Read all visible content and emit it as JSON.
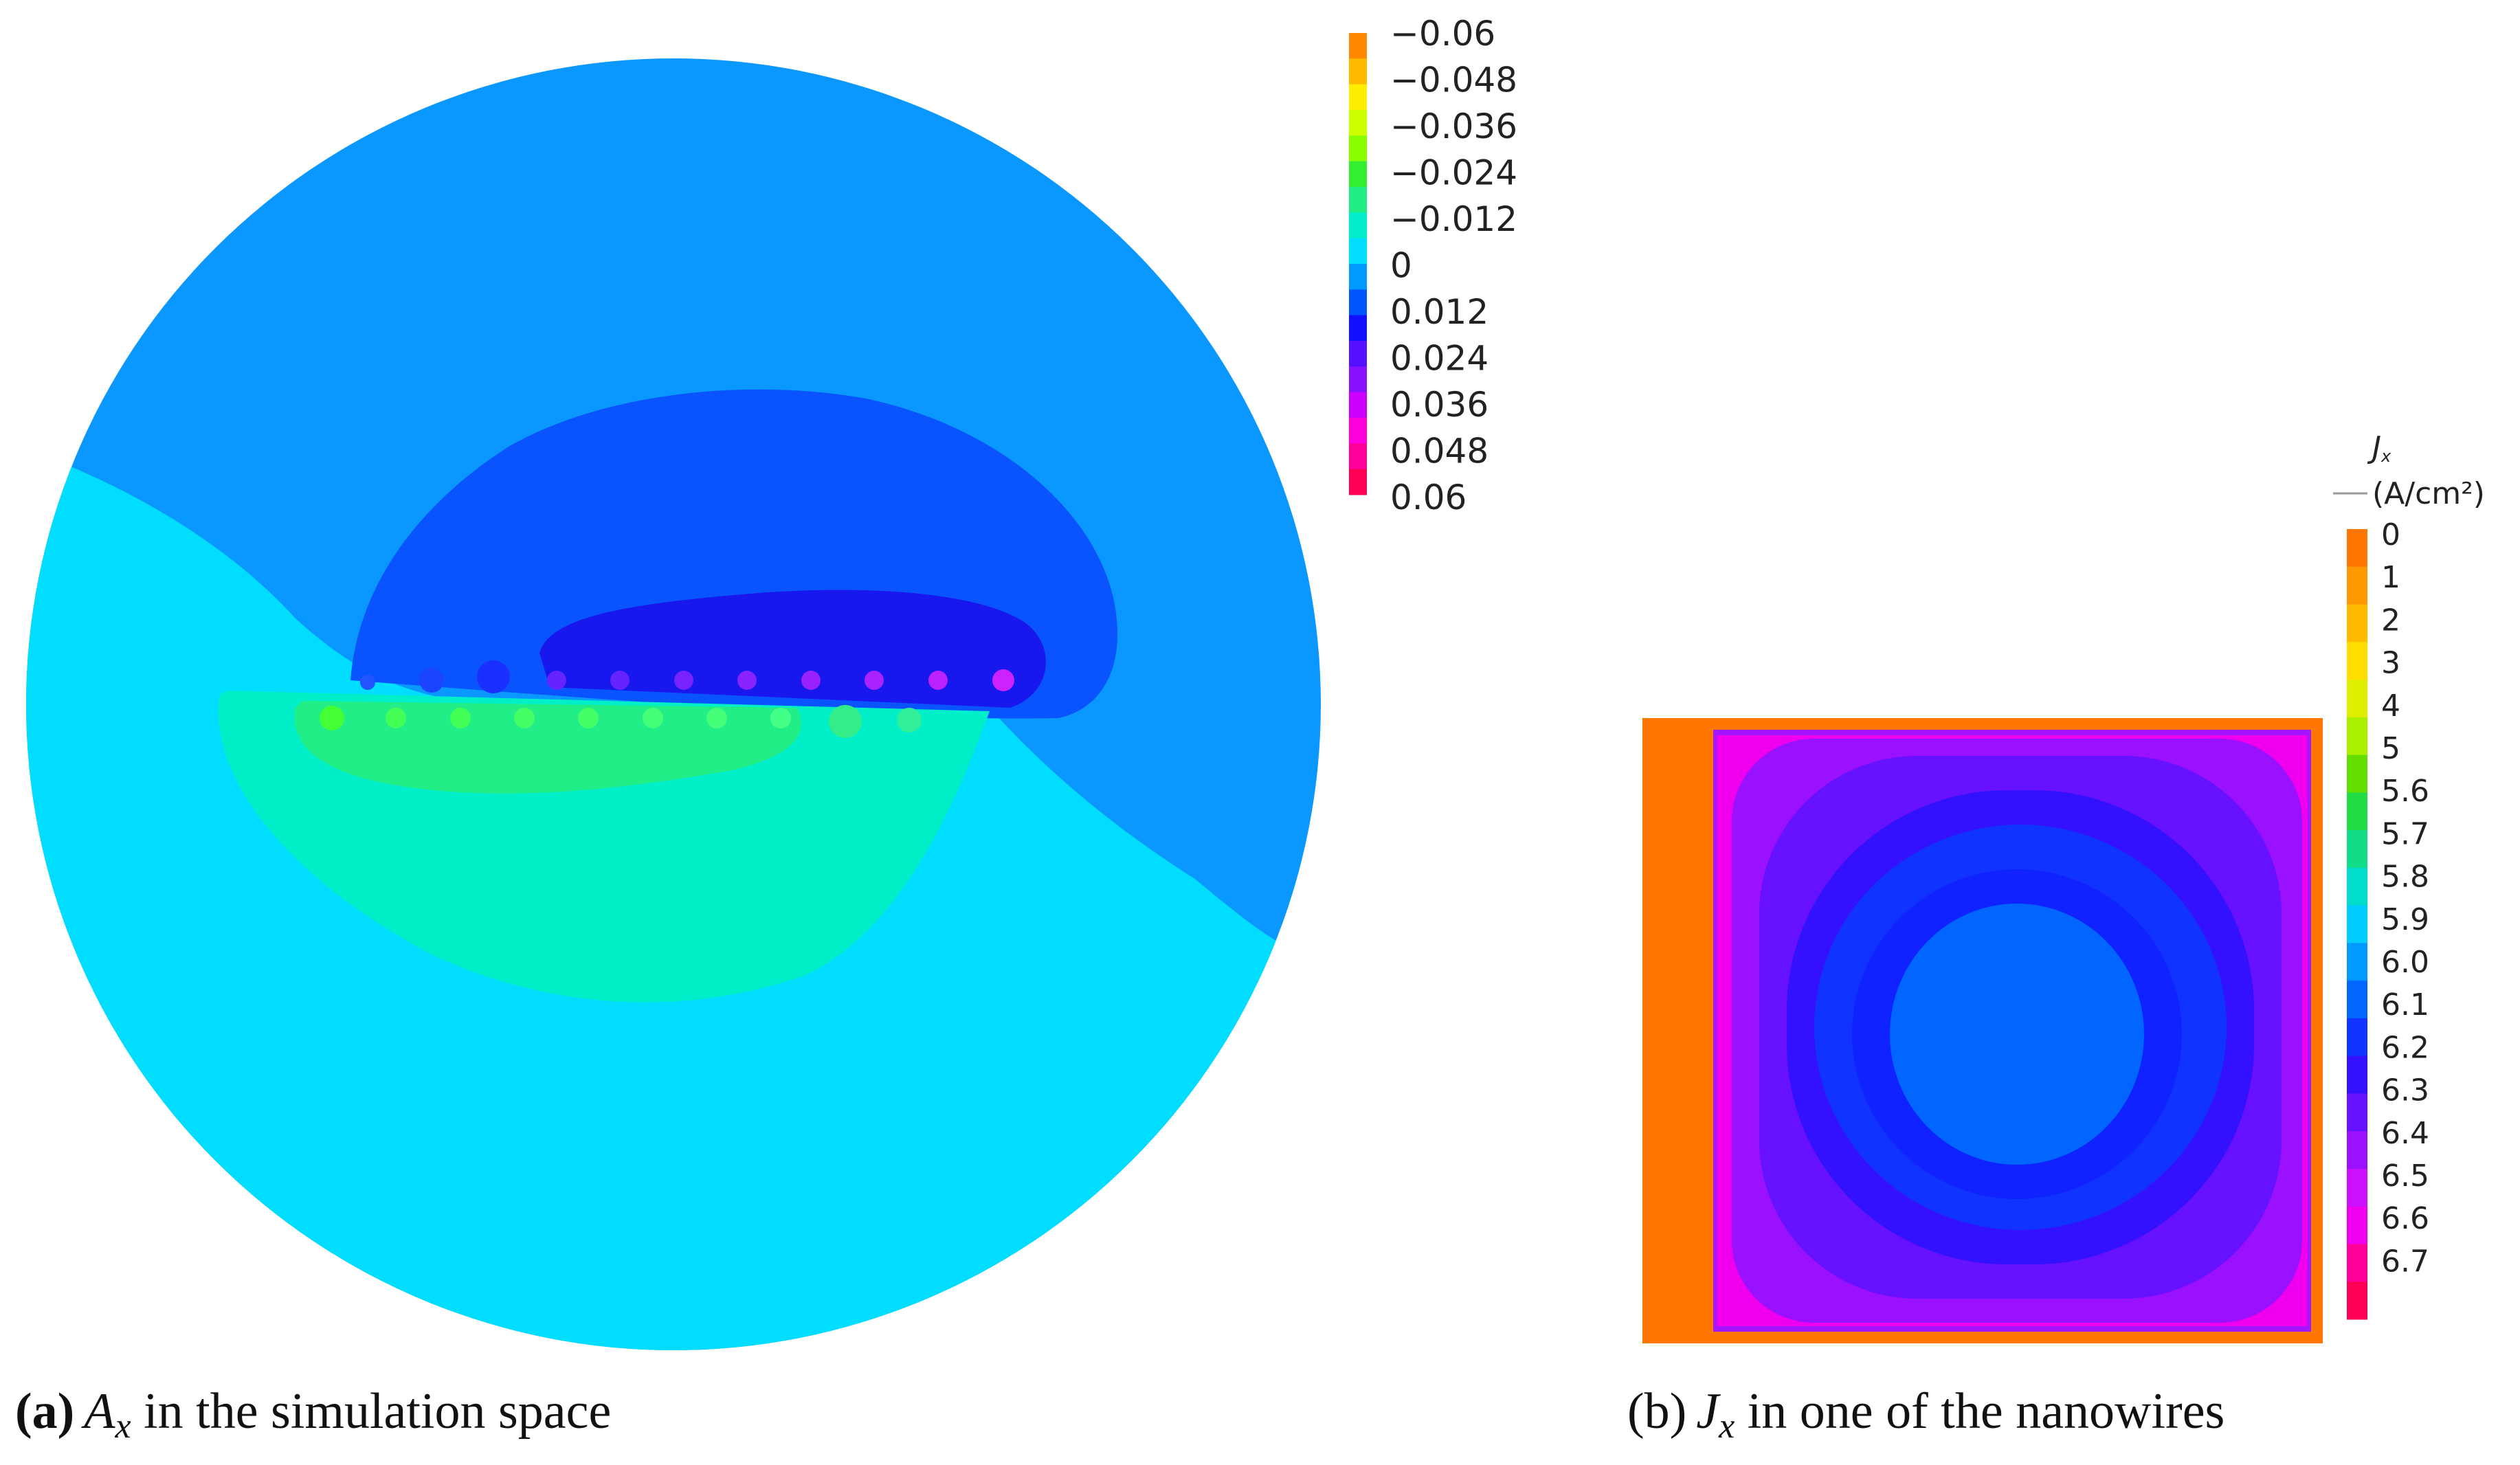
{
  "panel_a": {
    "caption_tag": "(a)",
    "caption_symbol": "A",
    "caption_subscript": "x",
    "caption_text": " in the simulation space",
    "legend_labels": [
      "−0.06",
      "−0.048",
      "−0.036",
      "−0.024",
      "−0.012",
      "0",
      "0.012",
      "0.024",
      "0.036",
      "0.048",
      "0.06"
    ],
    "legend_colors": [
      "#ff8800",
      "#ffbb00",
      "#ffee00",
      "#ccff00",
      "#88ff00",
      "#33ee33",
      "#22ee88",
      "#00eecc",
      "#00ddff",
      "#0099ff",
      "#0055ff",
      "#1111ff",
      "#5511ff",
      "#8811ff",
      "#cc00ff",
      "#ff00dd",
      "#ff0099",
      "#ff0055"
    ]
  },
  "panel_b": {
    "caption_tag": "(b)",
    "caption_symbol": "J",
    "caption_subscript": "x",
    "caption_text": " in one of the nanowires",
    "legend_title": "J",
    "legend_title_sub": "x",
    "legend_unit": "(A/cm²)",
    "legend_labels": [
      "0",
      "1",
      "2",
      "3",
      "4",
      "5",
      "5.6",
      "5.7",
      "5.8",
      "5.9",
      "6.0",
      "6.1",
      "6.2",
      "6.3",
      "6.4",
      "6.5",
      "6.6",
      "6.7"
    ],
    "legend_colors": [
      "#ff7700",
      "#ff9900",
      "#ffbb00",
      "#ffdd00",
      "#ddee00",
      "#aaee00",
      "#66dd00",
      "#22dd44",
      "#11dd88",
      "#00ddcc",
      "#00ccff",
      "#0099ff",
      "#0066ff",
      "#1133ff",
      "#3311ff",
      "#6611ff",
      "#9911ff",
      "#cc11ff",
      "#ee00ee",
      "#ff0099",
      "#ff0055"
    ]
  }
}
